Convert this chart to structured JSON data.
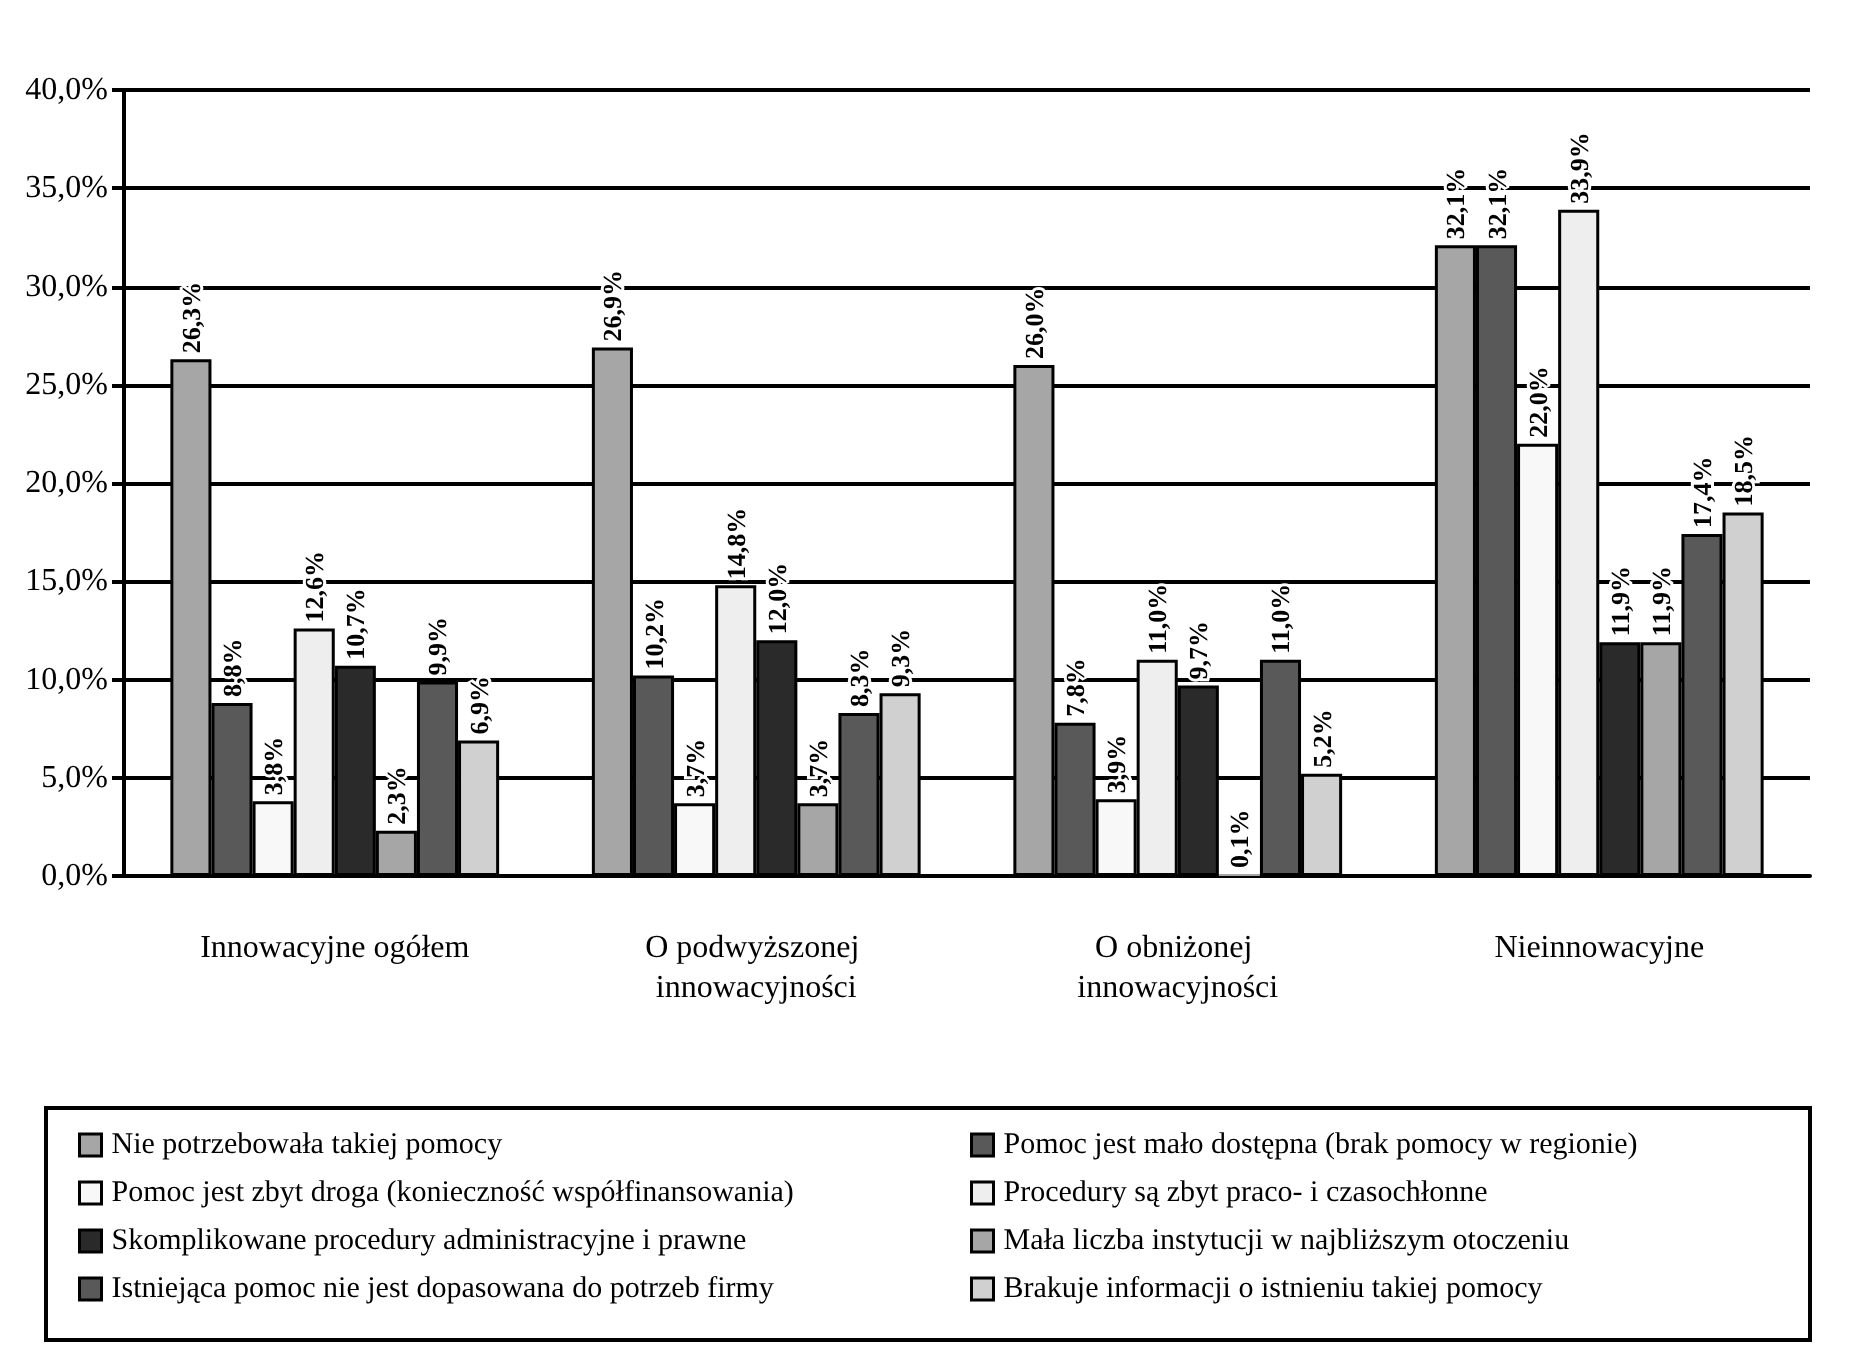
{
  "chart_data": {
    "type": "bar",
    "categories": [
      "Innowacyjne ogółem",
      "O podwyższonej innowacyjności",
      "O obniżonej innowacyjności",
      "Nieinnowacyjne"
    ],
    "ylim": [
      0,
      40
    ],
    "yticks": [
      {
        "value": 0,
        "label": "0,0%"
      },
      {
        "value": 5,
        "label": "5,0%"
      },
      {
        "value": 10,
        "label": "10,0%"
      },
      {
        "value": 15,
        "label": "15,0%"
      },
      {
        "value": 20,
        "label": "20,0%"
      },
      {
        "value": 25,
        "label": "25,0%"
      },
      {
        "value": 30,
        "label": "30,0%"
      },
      {
        "value": 35,
        "label": "35,0%"
      },
      {
        "value": 40,
        "label": "40,0%"
      }
    ],
    "grid": "y",
    "legend": "bottom",
    "series": [
      {
        "name": "Nie potrzebowała takiej pomocy",
        "color": "#a6a6a6",
        "values": [
          26.3,
          26.9,
          26.0,
          32.1
        ],
        "value_labels": [
          "26,3%",
          "26,9%",
          "26,0%",
          "32,1%"
        ]
      },
      {
        "name": "Pomoc jest mało dostępna (brak pomocy w regionie)",
        "color": "#595959",
        "values": [
          8.8,
          10.2,
          7.8,
          32.1
        ],
        "value_labels": [
          "8,8%",
          "10,2%",
          "7,8%",
          "32,1%"
        ]
      },
      {
        "name": "Pomoc jest zbyt droga (konieczność współfinansowania)",
        "color": "#f8f8f8",
        "values": [
          3.8,
          3.7,
          3.9,
          22.0
        ],
        "value_labels": [
          "3,8%",
          "3,7%",
          "3,9%",
          "22,0%"
        ]
      },
      {
        "name": "Procedury są zbyt praco- i czasochłonne",
        "color": "#eeeeee",
        "values": [
          12.6,
          14.8,
          11.0,
          33.9
        ],
        "value_labels": [
          "12,6%",
          "14,8%",
          "11,0%",
          "33,9%"
        ]
      },
      {
        "name": "Skomplikowane procedury administracyjne i prawne",
        "color": "#2a2a2a",
        "values": [
          10.7,
          12.0,
          9.7,
          11.9
        ],
        "value_labels": [
          "10,7%",
          "12,0%",
          "9,7%",
          "11,9%"
        ]
      },
      {
        "name": "Mała liczba instytucji w najbliższym otoczeniu",
        "color": "#a6a6a6",
        "values": [
          2.3,
          3.7,
          0.1,
          11.9
        ],
        "value_labels": [
          "2,3%",
          "3,7%",
          "0,1%",
          "11,9%"
        ]
      },
      {
        "name": "Istniejąca pomoc nie jest dopasowana do potrzeb firmy",
        "color": "#595959",
        "values": [
          9.9,
          8.3,
          11.0,
          17.4
        ],
        "value_labels": [
          "9,9%",
          "8,3%",
          "11,0%",
          "17,4%"
        ]
      },
      {
        "name": "Brakuje informacji o istnieniu takiej pomocy",
        "color": "#d0d0d0",
        "values": [
          6.9,
          9.3,
          5.2,
          18.5
        ],
        "value_labels": [
          "6,9%",
          "9,3%",
          "5,2%",
          "18,5%"
        ]
      }
    ]
  }
}
